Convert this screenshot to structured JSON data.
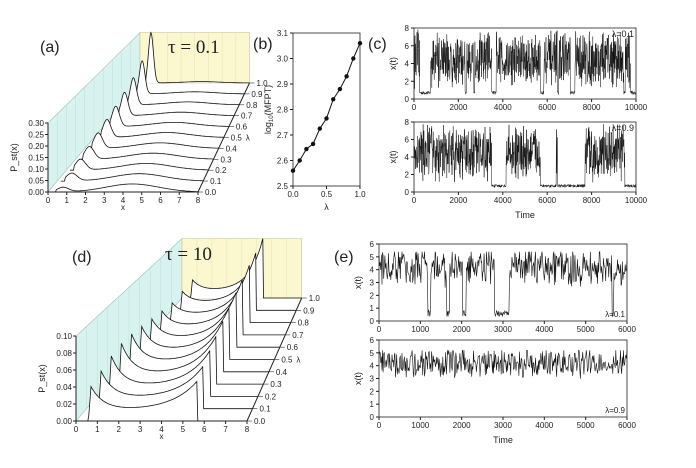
{
  "chart_data": [
    {
      "id": "a",
      "type": "3d-waterfall",
      "panel_label": "(a)",
      "annotation": "τ = 0.1",
      "xlabel": "x",
      "ylabel": "P_st(x)",
      "zlabel": "λ",
      "xlim": [
        0,
        8
      ],
      "ylim": [
        0,
        0.3
      ],
      "x_ticks": [
        "0",
        "1",
        "2",
        "3",
        "4",
        "5",
        "6",
        "7",
        "8"
      ],
      "y_ticks": [
        "0.00",
        "0.05",
        "0.10",
        "0.15",
        "0.20",
        "0.25",
        "0.30"
      ],
      "lambda_ticks": [
        "0.0",
        "0.1",
        "0.2",
        "0.3",
        "0.4",
        "0.5",
        "0.6",
        "0.7",
        "0.8",
        "0.9",
        "1.0"
      ],
      "lambda": [
        0,
        0.1,
        0.2,
        0.3,
        0.4,
        0.5,
        0.6,
        0.7,
        0.8,
        0.9,
        1.0
      ],
      "peak1_x": 0.8,
      "peak1_height": [
        0.02,
        0.035,
        0.05,
        0.06,
        0.075,
        0.09,
        0.105,
        0.125,
        0.15,
        0.19,
        0.3
      ],
      "peak2_x": 4.5,
      "peak2_height": [
        0.035,
        0.033,
        0.031,
        0.029,
        0.027,
        0.025,
        0.022,
        0.019,
        0.016,
        0.012,
        0.008
      ]
    },
    {
      "id": "b",
      "type": "line",
      "panel_label": "(b)",
      "xlabel": "λ",
      "ylabel": "log10(MFPT)",
      "ylabel_main": "log",
      "ylabel_sub": "10",
      "ylabel_rest": "(MFPT)",
      "xlim": [
        0,
        1
      ],
      "ylim": [
        2.5,
        3.1
      ],
      "x_ticks": [
        "0.0",
        "0.5",
        "1.0"
      ],
      "y_ticks": [
        "2.5",
        "2.6",
        "2.7",
        "2.8",
        "2.9",
        "3.0",
        "3.1"
      ],
      "x": [
        0,
        0.1,
        0.2,
        0.3,
        0.4,
        0.5,
        0.6,
        0.7,
        0.8,
        0.9,
        1.0
      ],
      "y": [
        2.56,
        2.6,
        2.645,
        2.665,
        2.725,
        2.765,
        2.84,
        2.88,
        2.93,
        3.0,
        3.06
      ]
    },
    {
      "id": "c1",
      "type": "line",
      "panel_label": "(c)",
      "annotation": "λ=0.1",
      "xlabel": "",
      "ylabel": "x(t)",
      "xlim": [
        0,
        10000
      ],
      "ylim": [
        0,
        8
      ],
      "x_ticks": [
        "0",
        "2000",
        "4000",
        "6000",
        "8000",
        "10000"
      ],
      "y_ticks": [
        "0",
        "2",
        "4",
        "6",
        "8"
      ],
      "high_state": 4.5,
      "low_state": 0.7,
      "low_intervals": [
        [
          250,
          750
        ],
        [
          2300,
          2360
        ],
        [
          2700,
          2740
        ],
        [
          3500,
          3700
        ],
        [
          5700,
          5850
        ],
        [
          6450,
          6520
        ],
        [
          7050,
          7250
        ],
        [
          9450,
          9520
        ],
        [
          9750,
          10000
        ]
      ]
    },
    {
      "id": "c2",
      "type": "line",
      "annotation": "λ=0.9",
      "xlabel": "Time",
      "ylabel": "x(t)",
      "xlim": [
        0,
        10000
      ],
      "ylim": [
        0,
        8
      ],
      "x_ticks": [
        "0",
        "2000",
        "4000",
        "6000",
        "8000",
        "10000"
      ],
      "y_ticks": [
        "0",
        "2",
        "4",
        "6",
        "8"
      ],
      "high_state": 4.5,
      "low_state": 0.7,
      "low_intervals": [
        [
          3500,
          4150
        ],
        [
          5700,
          6400
        ],
        [
          6460,
          7700
        ],
        [
          9500,
          10000
        ]
      ]
    },
    {
      "id": "d",
      "type": "3d-waterfall",
      "panel_label": "(d)",
      "annotation": "τ = 10",
      "xlabel": "x",
      "ylabel": "P_st(x)",
      "zlabel": "λ",
      "xlim": [
        0,
        8
      ],
      "ylim": [
        0,
        0.1
      ],
      "x_ticks": [
        "0",
        "1",
        "2",
        "3",
        "4",
        "5",
        "6",
        "7",
        "8"
      ],
      "y_ticks": [
        "0.00",
        "0.02",
        "0.04",
        "0.06",
        "0.08",
        "0.10"
      ],
      "lambda_ticks": [
        "0.0",
        "0.1",
        "0.2",
        "0.3",
        "0.4",
        "0.5",
        "0.6",
        "0.7",
        "0.8",
        "0.9",
        "1.0"
      ],
      "lambda": [
        0,
        0.1,
        0.2,
        0.3,
        0.4,
        0.5,
        0.6,
        0.7,
        0.8,
        0.9,
        1.0
      ],
      "peak1_x": 0.7,
      "peak1_height": [
        0.04,
        0.045,
        0.05,
        0.052,
        0.05,
        0.045,
        0.04,
        0.035,
        0.03,
        0.03,
        0.03
      ],
      "peak2_x": 5.6,
      "peak2_height": [
        0.045,
        0.05,
        0.055,
        0.06,
        0.065,
        0.07,
        0.075,
        0.08,
        0.085,
        0.09,
        0.095
      ]
    },
    {
      "id": "e1",
      "type": "line",
      "panel_label": "(e)",
      "annotation": "λ=0.1",
      "xlabel": "",
      "ylabel": "x(t)",
      "xlim": [
        0,
        6000
      ],
      "ylim": [
        0,
        6
      ],
      "x_ticks": [
        "0",
        "1000",
        "2000",
        "3000",
        "4000",
        "5000",
        "6000"
      ],
      "y_ticks": [
        "0",
        "1",
        "2",
        "3",
        "4",
        "5",
        "6"
      ],
      "high_state": 4.2,
      "low_state": 0.6,
      "low_intervals": [
        [
          1180,
          1250
        ],
        [
          1640,
          1700
        ],
        [
          2020,
          2100
        ],
        [
          2800,
          3150
        ],
        [
          5640,
          5680
        ]
      ]
    },
    {
      "id": "e2",
      "type": "line",
      "annotation": "λ=0.9",
      "xlabel": "Time",
      "ylabel": "x(t)",
      "xlim": [
        0,
        6000
      ],
      "ylim": [
        0,
        6
      ],
      "x_ticks": [
        "0",
        "1000",
        "2000",
        "3000",
        "4000",
        "5000",
        "6000"
      ],
      "y_ticks": [
        "0",
        "1",
        "2",
        "3",
        "4",
        "5",
        "6"
      ],
      "high_state": 4.2,
      "low_state": 0.6,
      "low_intervals": []
    }
  ]
}
